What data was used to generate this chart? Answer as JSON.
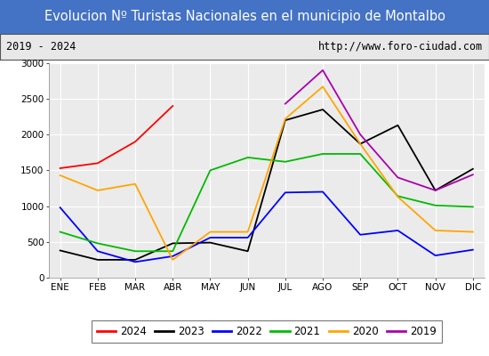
{
  "title": "Evolucion Nº Turistas Nacionales en el municipio de Montalbo",
  "subtitle_left": "2019 - 2024",
  "subtitle_right": "http://www.foro-ciudad.com",
  "title_bg_color": "#4472c4",
  "title_text_color": "#ffffff",
  "plot_bg_color": "#ebebeb",
  "months": [
    "ENE",
    "FEB",
    "MAR",
    "ABR",
    "MAY",
    "JUN",
    "JUL",
    "AGO",
    "SEP",
    "OCT",
    "NOV",
    "DIC"
  ],
  "series": {
    "2024": {
      "color": "#ff0000",
      "values": [
        1530,
        1600,
        1900,
        2400,
        null,
        null,
        null,
        null,
        null,
        null,
        null,
        null
      ]
    },
    "2023": {
      "color": "#000000",
      "values": [
        380,
        250,
        250,
        480,
        490,
        370,
        2200,
        2350,
        1870,
        2130,
        1220,
        1520
      ]
    },
    "2022": {
      "color": "#0000ff",
      "values": [
        980,
        370,
        220,
        300,
        560,
        560,
        1190,
        1200,
        600,
        660,
        310,
        390
      ]
    },
    "2021": {
      "color": "#00bb00",
      "values": [
        640,
        480,
        370,
        370,
        1500,
        1680,
        1620,
        1730,
        1730,
        1140,
        1010,
        990
      ]
    },
    "2020": {
      "color": "#ffa500",
      "values": [
        1430,
        1220,
        1310,
        250,
        640,
        640,
        2220,
        2670,
        1870,
        1130,
        660,
        640
      ]
    },
    "2019": {
      "color": "#aa00aa",
      "values": [
        null,
        null,
        null,
        null,
        null,
        null,
        2430,
        2900,
        2000,
        1400,
        1220,
        1440
      ]
    }
  },
  "ylim": [
    0,
    3000
  ],
  "yticks": [
    0,
    500,
    1000,
    1500,
    2000,
    2500,
    3000
  ],
  "legend_order": [
    "2024",
    "2023",
    "2022",
    "2021",
    "2020",
    "2019"
  ]
}
